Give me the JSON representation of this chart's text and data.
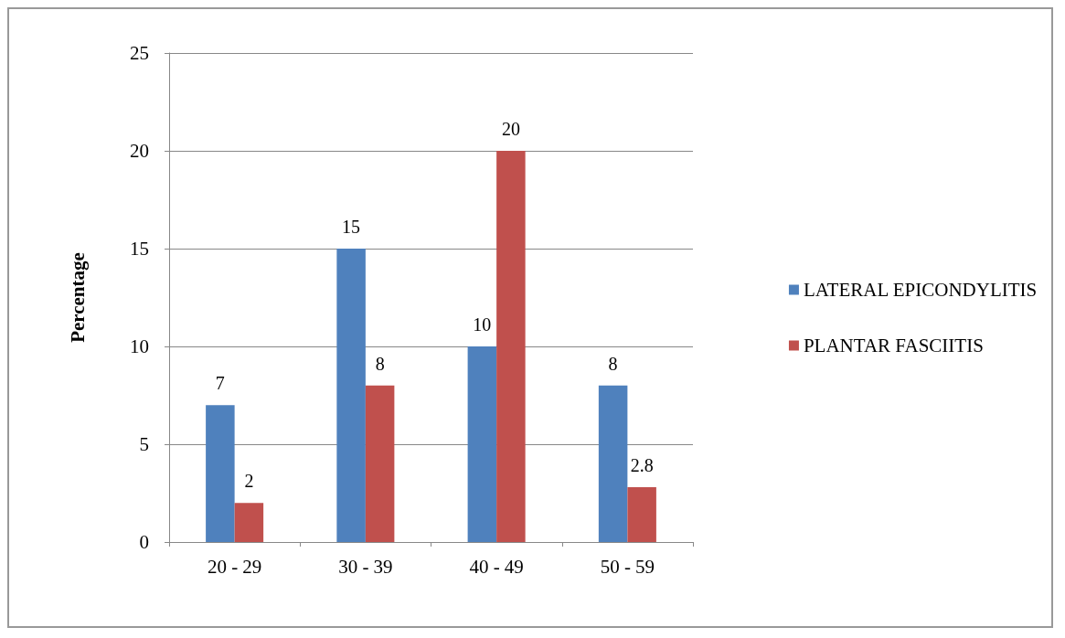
{
  "chart_data": {
    "type": "bar",
    "ylabel": "Percentage",
    "categories": [
      "20 - 29",
      "30 - 39",
      "40 - 49",
      "50 - 59"
    ],
    "series": [
      {
        "name": "LATERAL EPICONDYLITIS",
        "color": "#4f81bd",
        "values": [
          7,
          15,
          10,
          8
        ]
      },
      {
        "name": "PLANTAR FASCIITIS",
        "color": "#c0504d",
        "values": [
          2,
          8,
          20,
          2.8
        ]
      }
    ],
    "ylim": [
      0,
      25
    ],
    "yticks": [
      0,
      5,
      10,
      15,
      20,
      25
    ],
    "grid": "y",
    "legend": "right",
    "data_labels": true
  }
}
